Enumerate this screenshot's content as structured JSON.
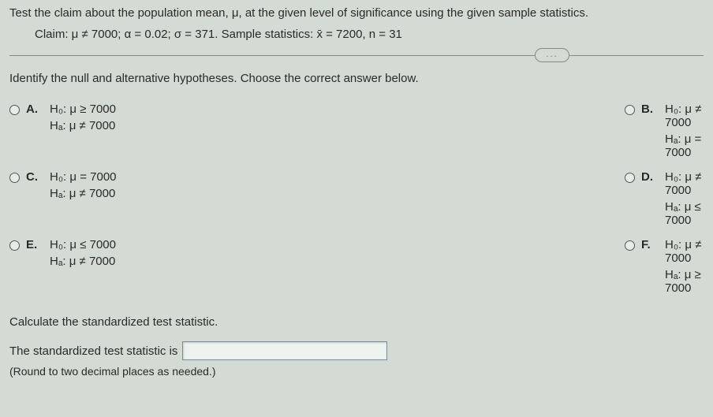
{
  "problem": {
    "statement": "Test the claim about the population mean, μ, at the given level of significance using the given sample statistics.",
    "claim": "Claim: μ ≠ 7000; α = 0.02; σ = 371. Sample statistics: x̄ = 7200, n = 31"
  },
  "divider": {
    "ellipsis": "..."
  },
  "question": "Identify the null and alternative hypotheses. Choose the correct answer below.",
  "options": {
    "A": {
      "letter": "A.",
      "h0": "H₀: μ ≥ 7000",
      "ha": "Hₐ: μ ≠ 7000"
    },
    "B": {
      "letter": "B.",
      "h0": "H₀: μ ≠ 7000",
      "ha": "Hₐ: μ = 7000"
    },
    "C": {
      "letter": "C.",
      "h0": "H₀: μ = 7000",
      "ha": "Hₐ: μ ≠ 7000"
    },
    "D": {
      "letter": "D.",
      "h0": "H₀: μ ≠ 7000",
      "ha": "Hₐ: μ ≤ 7000"
    },
    "E": {
      "letter": "E.",
      "h0": "H₀: μ ≤ 7000",
      "ha": "Hₐ: μ ≠ 7000"
    },
    "F": {
      "letter": "F.",
      "h0": "H₀: μ ≠ 7000",
      "ha": "Hₐ: μ ≥ 7000"
    }
  },
  "calc": {
    "prompt": "Calculate the standardized test statistic.",
    "answer_label": "The standardized test statistic is",
    "round_note": "(Round to two decimal places as needed.)"
  },
  "colors": {
    "background": "#d4dad4",
    "text": "#2a2a2a",
    "border": "#888",
    "input_border": "#7a8a9a"
  }
}
